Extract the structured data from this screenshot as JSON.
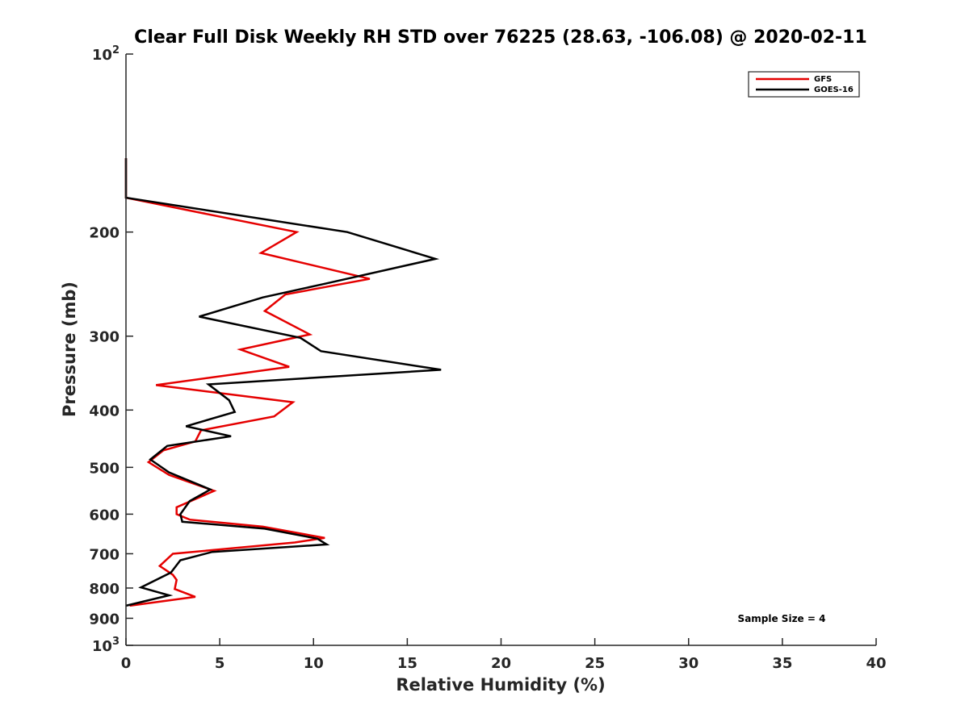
{
  "chart_data": {
    "type": "line",
    "title": "Clear Full Disk Weekly RH STD over 76225 (28.63, -106.08) @ 2020-02-11",
    "xlabel": "Relative Humidity (%)",
    "ylabel": "Pressure (mb)",
    "xlim": [
      0,
      40
    ],
    "ylim": [
      100,
      1000
    ],
    "y_scale": "log",
    "y_reversed": true,
    "x_ticks": [
      "0",
      "5",
      "10",
      "15",
      "20",
      "25",
      "30",
      "35",
      "40"
    ],
    "y_ticks": [
      {
        "value": 100,
        "base": "10",
        "exp": "2"
      },
      {
        "value": 200,
        "label": "200"
      },
      {
        "value": 300,
        "label": "300"
      },
      {
        "value": 400,
        "label": "400"
      },
      {
        "value": 500,
        "label": "500"
      },
      {
        "value": 600,
        "label": "600"
      },
      {
        "value": 700,
        "label": "700"
      },
      {
        "value": 800,
        "label": "800"
      },
      {
        "value": 900,
        "label": "900"
      },
      {
        "value": 1000,
        "base": "10",
        "exp": "3"
      }
    ],
    "grid": false,
    "legend_position": "top-right",
    "series": [
      {
        "name": "GFS",
        "color": "#e50000",
        "points": [
          [
            0,
            150
          ],
          [
            0,
            175
          ],
          [
            9.1,
            200
          ],
          [
            7.2,
            217
          ],
          [
            13.0,
            240
          ],
          [
            8.5,
            255
          ],
          [
            7.4,
            272
          ],
          [
            9.8,
            298
          ],
          [
            6.1,
            316
          ],
          [
            8.7,
            338
          ],
          [
            1.6,
            363
          ],
          [
            8.9,
            388
          ],
          [
            7.9,
            410
          ],
          [
            4.0,
            433
          ],
          [
            3.7,
            452
          ],
          [
            2.0,
            468
          ],
          [
            1.2,
            490
          ],
          [
            2.3,
            515
          ],
          [
            4.7,
            548
          ],
          [
            2.7,
            584
          ],
          [
            2.7,
            600
          ],
          [
            3.4,
            613
          ],
          [
            7.3,
            630
          ],
          [
            10.6,
            658
          ],
          [
            9.0,
            670
          ],
          [
            2.5,
            700
          ],
          [
            1.8,
            734
          ],
          [
            2.5,
            760
          ],
          [
            2.7,
            775
          ],
          [
            2.6,
            803
          ],
          [
            3.7,
            828
          ],
          [
            0.2,
            857
          ]
        ]
      },
      {
        "name": "GOES-16",
        "color": "#000000",
        "points": [
          [
            0,
            150
          ],
          [
            0,
            175
          ],
          [
            11.8,
            200
          ],
          [
            16.5,
            222
          ],
          [
            10.5,
            245
          ],
          [
            7.3,
            258
          ],
          [
            3.9,
            278
          ],
          [
            9.3,
            302
          ],
          [
            10.4,
            318
          ],
          [
            16.8,
            342
          ],
          [
            4.4,
            362
          ],
          [
            5.5,
            385
          ],
          [
            5.8,
            403
          ],
          [
            3.2,
            426
          ],
          [
            5.6,
            443
          ],
          [
            2.2,
            460
          ],
          [
            1.3,
            485
          ],
          [
            2.3,
            510
          ],
          [
            4.5,
            545
          ],
          [
            3.4,
            570
          ],
          [
            2.9,
            600
          ],
          [
            3.0,
            618
          ],
          [
            7.4,
            635
          ],
          [
            10.2,
            660
          ],
          [
            10.7,
            675
          ],
          [
            4.6,
            695
          ],
          [
            2.9,
            718
          ],
          [
            2.4,
            753
          ],
          [
            0.8,
            798
          ],
          [
            2.3,
            823
          ],
          [
            0,
            857
          ]
        ]
      }
    ],
    "annotations": [
      "Sample Size = 4"
    ]
  }
}
